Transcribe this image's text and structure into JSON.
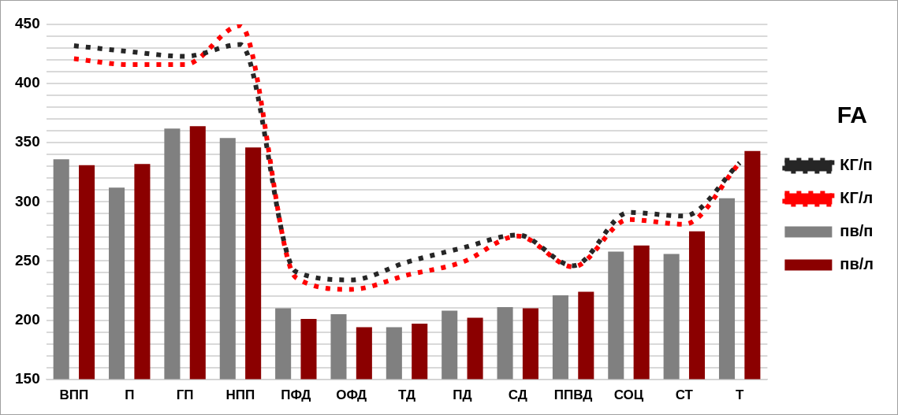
{
  "chart_data": {
    "type": "bar",
    "title": "FA",
    "categories": [
      "ВПП",
      "П",
      "ГП",
      "НПП",
      "ПФД",
      "ОФД",
      "ТД",
      "ПД",
      "СД",
      "ППВД",
      "СОЦ",
      "СТ",
      "Т"
    ],
    "series": [
      {
        "name": "пв/п",
        "color": "#808080",
        "values": [
          336,
          312,
          362,
          354,
          210,
          205,
          194,
          208,
          211,
          221,
          258,
          256,
          303
        ]
      },
      {
        "name": "пв/л",
        "color": "#8b0000",
        "values": [
          331,
          332,
          364,
          346,
          201,
          194,
          197,
          202,
          210,
          224,
          263,
          275,
          343
        ]
      },
      {
        "name": "КГ/п",
        "type": "line",
        "color": "#262626",
        "line_style": "dotted",
        "values": [
          432,
          427,
          423,
          433,
          241,
          234,
          249,
          261,
          272,
          246,
          291,
          288,
          333
        ]
      },
      {
        "name": "КГ/л",
        "type": "line",
        "color": "#ff0000",
        "line_style": "dotted",
        "values": [
          421,
          416,
          416,
          449,
          236,
          226,
          238,
          249,
          271,
          245,
          285,
          281,
          333
        ]
      }
    ],
    "ylim": [
      150,
      450
    ],
    "yticks": [
      150,
      {
        "value": 160,
        "label": null
      },
      {
        "value": 170,
        "label": null
      },
      {
        "value": 180,
        "label": null
      },
      {
        "value": 190,
        "label": null
      },
      200,
      {
        "value": 210,
        "label": null
      },
      {
        "value": 220,
        "label": null
      },
      {
        "value": 230,
        "label": null
      },
      {
        "value": 240,
        "label": null
      },
      250,
      {
        "value": 260,
        "label": null
      },
      {
        "value": 270,
        "label": null
      },
      {
        "value": 280,
        "label": null
      },
      {
        "value": 290,
        "label": null
      },
      300,
      {
        "value": 310,
        "label": null
      },
      {
        "value": 320,
        "label": null
      },
      {
        "value": 330,
        "label": null
      },
      {
        "value": 340,
        "label": null
      },
      350,
      {
        "value": 360,
        "label": null
      },
      {
        "value": 370,
        "label": null
      },
      {
        "value": 380,
        "label": null
      },
      {
        "value": 390,
        "label": null
      },
      400,
      {
        "value": 410,
        "label": null
      },
      {
        "value": 420,
        "label": null
      },
      {
        "value": 430,
        "label": null
      },
      {
        "value": 440,
        "label": null
      },
      450
    ],
    "grid": "y",
    "legend": "right",
    "marker": "none"
  }
}
